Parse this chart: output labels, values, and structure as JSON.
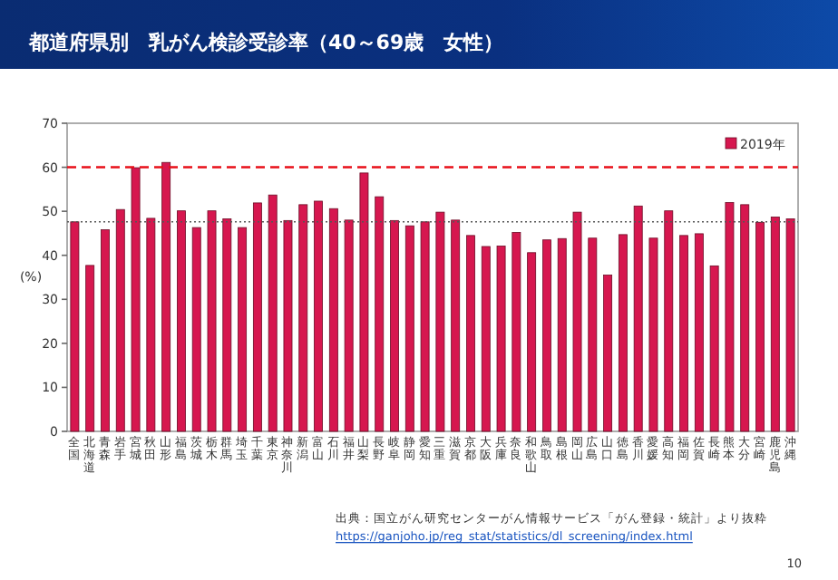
{
  "chart_data": {
    "type": "bar",
    "title": "都道府県別　乳がん検診受診率（40～69歳　女性）",
    "ylabel": "(%)",
    "categories": [
      "全国",
      "北海道",
      "青森",
      "岩手",
      "宮城",
      "秋田",
      "山形",
      "福島",
      "茨城",
      "栃木",
      "群馬",
      "埼玉",
      "千葉",
      "東京",
      "神奈川",
      "新潟",
      "富山",
      "石川",
      "福井",
      "山梨",
      "長野",
      "岐阜",
      "静岡",
      "愛知",
      "三重",
      "滋賀",
      "京都",
      "大阪",
      "兵庫",
      "奈良",
      "和歌山",
      "鳥取",
      "島根",
      "岡山",
      "広島",
      "山口",
      "徳島",
      "香川",
      "愛媛",
      "高知",
      "福岡",
      "佐賀",
      "長崎",
      "熊本",
      "大分",
      "宮崎",
      "鹿児島",
      "沖縄"
    ],
    "series": [
      {
        "name": "2019年",
        "color": "#d6174f",
        "values": [
          47.6,
          37.7,
          45.8,
          50.4,
          59.9,
          48.4,
          61.1,
          50.1,
          46.3,
          50.1,
          48.3,
          46.3,
          51.9,
          53.7,
          47.9,
          51.5,
          52.3,
          50.6,
          48.0,
          58.7,
          53.3,
          47.9,
          46.7,
          47.6,
          49.8,
          48.0,
          44.5,
          42.0,
          42.1,
          45.2,
          40.6,
          43.5,
          43.8,
          49.8,
          43.9,
          35.5,
          44.7,
          51.2,
          43.9,
          50.1,
          44.5,
          44.9,
          37.6,
          52.0,
          51.5,
          47.5,
          48.7,
          48.3
        ]
      }
    ],
    "ylim": [
      0,
      70
    ],
    "yticks": [
      0,
      10,
      20,
      30,
      40,
      50,
      60,
      70
    ],
    "grid": false,
    "legend": "top right",
    "ref_lines": [
      {
        "axis": "y",
        "value": 60,
        "label": null,
        "color": "#e8101a",
        "line_style": "dashed"
      },
      {
        "axis": "y",
        "value": 47.6,
        "label": null,
        "color": "#555555",
        "line_style": "dotted"
      }
    ],
    "annotations": [
      "出典：国立がん研究センターがん情報サービス「がん登録・統計」より抜粋",
      "https://ganjoho.jp/reg_stat/statistics/dl_screening/index.html",
      "10"
    ]
  }
}
